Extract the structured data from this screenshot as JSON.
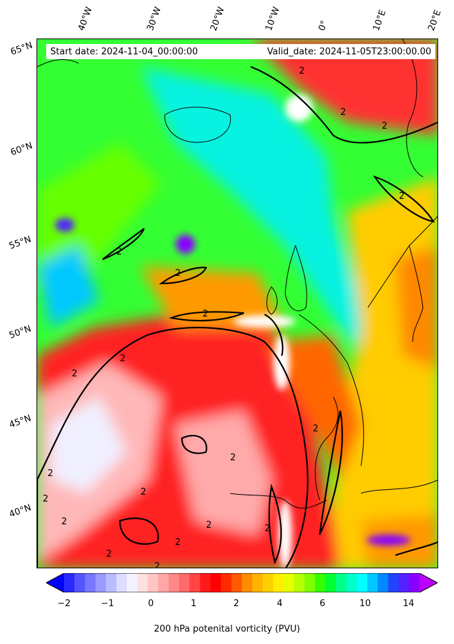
{
  "header": {
    "start_date": "Start date: 2024-11-04_00:00:00",
    "valid_date": "Valid_date: 2024-11-05T23:00:00.00"
  },
  "axes": {
    "longitude_labels": [
      "40°W",
      "30°W",
      "20°W",
      "10°W",
      "0°",
      "10°E",
      "20°E"
    ],
    "latitude_labels": [
      "65°N",
      "60°N",
      "55°N",
      "50°N",
      "45°N",
      "40°N"
    ]
  },
  "contour_label": "2",
  "colorbar": {
    "title": "200 hPa potenital vorticity (PVU)",
    "ticks": [
      "−2",
      "−1",
      "0",
      "1",
      "2",
      "4",
      "6",
      "10",
      "14"
    ],
    "colors": [
      "#0000ff",
      "#2a2aff",
      "#5555ff",
      "#7777ff",
      "#9999ff",
      "#bbbbff",
      "#ddddff",
      "#f3f3ff",
      "#ffe0e0",
      "#ffc4c4",
      "#ffa6a6",
      "#ff8888",
      "#ff6a6a",
      "#ff4444",
      "#ff1a1a",
      "#ff0000",
      "#ff2a00",
      "#ff5a00",
      "#ff8c00",
      "#ffb300",
      "#ffd000",
      "#ffee00",
      "#e8ff00",
      "#b8ff00",
      "#80ff00",
      "#33ff00",
      "#00ff33",
      "#00ff88",
      "#00ffcc",
      "#00ffff",
      "#00c8ff",
      "#0088ff",
      "#2244ff",
      "#5522ff",
      "#8800ff",
      "#bb00ff"
    ]
  }
}
